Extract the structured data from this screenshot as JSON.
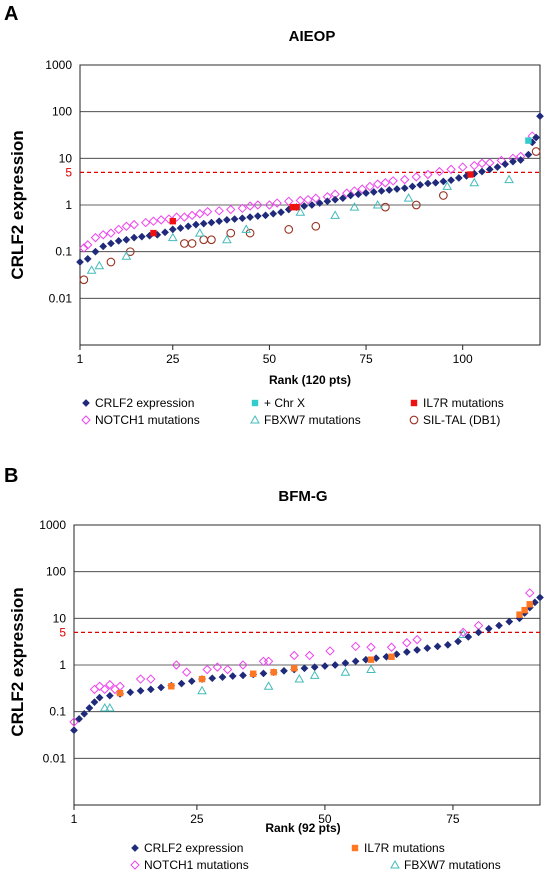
{
  "panels": {
    "a": {
      "letter": "A"
    },
    "b": {
      "letter": "B"
    }
  },
  "chart_data": [
    {
      "type": "scatter",
      "title": "AIEOP",
      "xlabel": "Rank (120 pts)",
      "ylabel": "CRLF2 expression",
      "y_scale": "log",
      "xlim": [
        1,
        120
      ],
      "ylim": [
        0.001,
        1000
      ],
      "x_ticks": [
        1,
        25,
        50,
        75,
        100
      ],
      "y_ticks": [
        "1000",
        "100",
        "10",
        "1",
        "0.1",
        "0.01"
      ],
      "threshold": {
        "value": 5,
        "label": "5",
        "color": "#e00000",
        "style": "dashed"
      },
      "grid": "horizontal",
      "legend_position": "bottom",
      "colors": {
        "crlf2": "#1f2a7a",
        "chrx": "#33cccc",
        "il7r": "#ee1111",
        "notch1": "#ee44ee",
        "fbxw7": "#44bbbb",
        "siltal": "#993322"
      },
      "series": [
        {
          "name": "CRLF2 expression",
          "key": "crlf2",
          "marker": "diamond",
          "x": [
            1,
            3,
            5,
            7,
            9,
            11,
            13,
            15,
            17,
            19,
            21,
            23,
            25,
            27,
            29,
            31,
            33,
            35,
            37,
            39,
            41,
            43,
            45,
            47,
            49,
            51,
            53,
            55,
            57,
            59,
            61,
            63,
            65,
            67,
            69,
            71,
            73,
            75,
            77,
            79,
            81,
            83,
            85,
            87,
            89,
            91,
            93,
            95,
            97,
            99,
            101,
            103,
            105,
            107,
            109,
            111,
            113,
            115,
            117,
            118,
            119,
            120
          ],
          "y": [
            0.06,
            0.07,
            0.1,
            0.13,
            0.15,
            0.17,
            0.18,
            0.2,
            0.21,
            0.22,
            0.23,
            0.26,
            0.3,
            0.32,
            0.35,
            0.38,
            0.4,
            0.42,
            0.45,
            0.48,
            0.5,
            0.52,
            0.55,
            0.58,
            0.6,
            0.65,
            0.7,
            0.8,
            0.9,
            0.95,
            1.0,
            1.1,
            1.2,
            1.3,
            1.4,
            1.6,
            1.7,
            1.8,
            1.9,
            2.0,
            2.1,
            2.2,
            2.3,
            2.5,
            2.7,
            2.9,
            3.0,
            3.2,
            3.4,
            3.8,
            4.2,
            4.7,
            5.2,
            5.8,
            6.5,
            7.5,
            8.5,
            9.2,
            12,
            22,
            28,
            80
          ]
        },
        {
          "name": "+ Chr X",
          "key": "chrx",
          "marker": "square",
          "x": [
            117
          ],
          "y": [
            24
          ]
        },
        {
          "name": "IL7R mutations",
          "key": "il7r",
          "marker": "square",
          "x": [
            20,
            25,
            56,
            57,
            102
          ],
          "y": [
            0.25,
            0.45,
            0.9,
            0.9,
            4.5
          ]
        },
        {
          "name": "NOTCH1 mutations",
          "key": "notch1",
          "marker": "diamond-open",
          "x": [
            2,
            3,
            5,
            7,
            9,
            11,
            13,
            15,
            18,
            20,
            22,
            24,
            26,
            28,
            30,
            32,
            34,
            37,
            40,
            43,
            45,
            47,
            50,
            52,
            55,
            58,
            60,
            62,
            65,
            67,
            70,
            72,
            74,
            76,
            78,
            80,
            82,
            85,
            88,
            91,
            94,
            97,
            100,
            103,
            105,
            107,
            110,
            113,
            115,
            118
          ],
          "y": [
            0.12,
            0.14,
            0.2,
            0.23,
            0.25,
            0.3,
            0.35,
            0.38,
            0.42,
            0.45,
            0.48,
            0.5,
            0.55,
            0.55,
            0.6,
            0.65,
            0.72,
            0.75,
            0.8,
            0.85,
            0.95,
            1.0,
            1.0,
            1.1,
            1.2,
            1.25,
            1.3,
            1.4,
            1.5,
            1.7,
            1.8,
            2.0,
            2.2,
            2.5,
            2.8,
            3.0,
            3.3,
            3.5,
            4.0,
            4.5,
            5.2,
            5.8,
            6.5,
            7.0,
            7.8,
            8.0,
            9.0,
            10,
            11,
            30
          ]
        },
        {
          "name": "FBXW7 mutations",
          "key": "fbxw7",
          "marker": "triangle-open",
          "x": [
            4,
            6,
            13,
            25,
            32,
            39,
            44,
            58,
            67,
            72,
            78,
            86,
            96,
            103,
            112
          ],
          "y": [
            0.04,
            0.05,
            0.08,
            0.2,
            0.25,
            0.18,
            0.3,
            0.7,
            0.6,
            0.9,
            1.0,
            1.4,
            2.5,
            3.0,
            3.5
          ]
        },
        {
          "name": "SIL-TAL (DB1)",
          "key": "siltal",
          "marker": "circle-open",
          "x": [
            2,
            9,
            14,
            28,
            30,
            33,
            35,
            40,
            45,
            55,
            62,
            80,
            88,
            95,
            119
          ],
          "y": [
            0.025,
            0.06,
            0.1,
            0.15,
            0.15,
            0.18,
            0.18,
            0.25,
            0.25,
            0.3,
            0.35,
            0.9,
            1.0,
            1.6,
            14
          ]
        }
      ]
    },
    {
      "type": "scatter",
      "title": "BFM-G",
      "xlabel": "Rank (92 pts)",
      "ylabel": "CRLF2 expression",
      "y_scale": "log",
      "xlim": [
        1,
        92
      ],
      "ylim": [
        0.001,
        1000
      ],
      "x_ticks": [
        1,
        25,
        50,
        75
      ],
      "y_ticks": [
        "1000",
        "100",
        "10",
        "1",
        "0.1",
        "0.01"
      ],
      "threshold": {
        "value": 5,
        "label": "5",
        "color": "#e00000",
        "style": "dashed"
      },
      "grid": "horizontal",
      "legend_position": "bottom",
      "colors": {
        "crlf2": "#1f2a7a",
        "il7r": "#ff7722",
        "notch1": "#ee44ee",
        "fbxw7": "#44bbbb"
      },
      "series": [
        {
          "name": "CRLF2 expression",
          "key": "crlf2",
          "marker": "diamond",
          "x": [
            1,
            2,
            3,
            4,
            5,
            6,
            8,
            10,
            12,
            14,
            16,
            18,
            20,
            22,
            24,
            26,
            28,
            30,
            32,
            34,
            36,
            38,
            40,
            42,
            44,
            46,
            48,
            50,
            52,
            54,
            56,
            58,
            60,
            62,
            64,
            66,
            68,
            70,
            72,
            74,
            76,
            78,
            80,
            82,
            84,
            86,
            88,
            89,
            90,
            91,
            92
          ],
          "y": [
            0.04,
            0.07,
            0.09,
            0.12,
            0.16,
            0.2,
            0.22,
            0.24,
            0.26,
            0.28,
            0.3,
            0.33,
            0.36,
            0.4,
            0.45,
            0.5,
            0.52,
            0.55,
            0.58,
            0.6,
            0.63,
            0.66,
            0.7,
            0.75,
            0.8,
            0.85,
            0.9,
            0.95,
            1.0,
            1.1,
            1.2,
            1.3,
            1.4,
            1.5,
            1.7,
            1.9,
            2.1,
            2.3,
            2.5,
            2.7,
            3.2,
            4.0,
            5.0,
            6.0,
            7.0,
            8.5,
            10,
            13,
            17,
            22,
            28
          ]
        },
        {
          "name": "IL7R mutations",
          "key": "il7r",
          "marker": "square",
          "x": [
            10,
            20,
            26,
            36,
            40,
            44,
            59,
            63,
            88,
            89,
            90
          ],
          "y": [
            0.25,
            0.35,
            0.5,
            0.65,
            0.7,
            0.85,
            1.3,
            1.5,
            12,
            15,
            20
          ]
        },
        {
          "name": "NOTCH1 mutations",
          "key": "notch1",
          "marker": "diamond-open",
          "x": [
            1,
            5,
            6,
            7,
            8,
            9,
            10,
            14,
            16,
            21,
            23,
            27,
            29,
            31,
            34,
            38,
            39,
            44,
            47,
            51,
            56,
            59,
            63,
            66,
            68,
            77,
            80,
            90
          ],
          "y": [
            0.06,
            0.3,
            0.35,
            0.3,
            0.38,
            0.3,
            0.35,
            0.5,
            0.5,
            1.0,
            0.7,
            0.8,
            0.9,
            0.8,
            1.0,
            1.2,
            1.2,
            1.6,
            1.6,
            2.0,
            2.5,
            2.4,
            2.4,
            3.0,
            3.5,
            5.0,
            7.0,
            35
          ]
        },
        {
          "name": "FBXW7 mutations",
          "key": "fbxw7",
          "marker": "triangle-open",
          "x": [
            7,
            8,
            26,
            39,
            45,
            48,
            54,
            59,
            77
          ],
          "y": [
            0.12,
            0.12,
            0.28,
            0.35,
            0.5,
            0.6,
            0.7,
            0.8,
            4.5
          ]
        }
      ]
    }
  ]
}
